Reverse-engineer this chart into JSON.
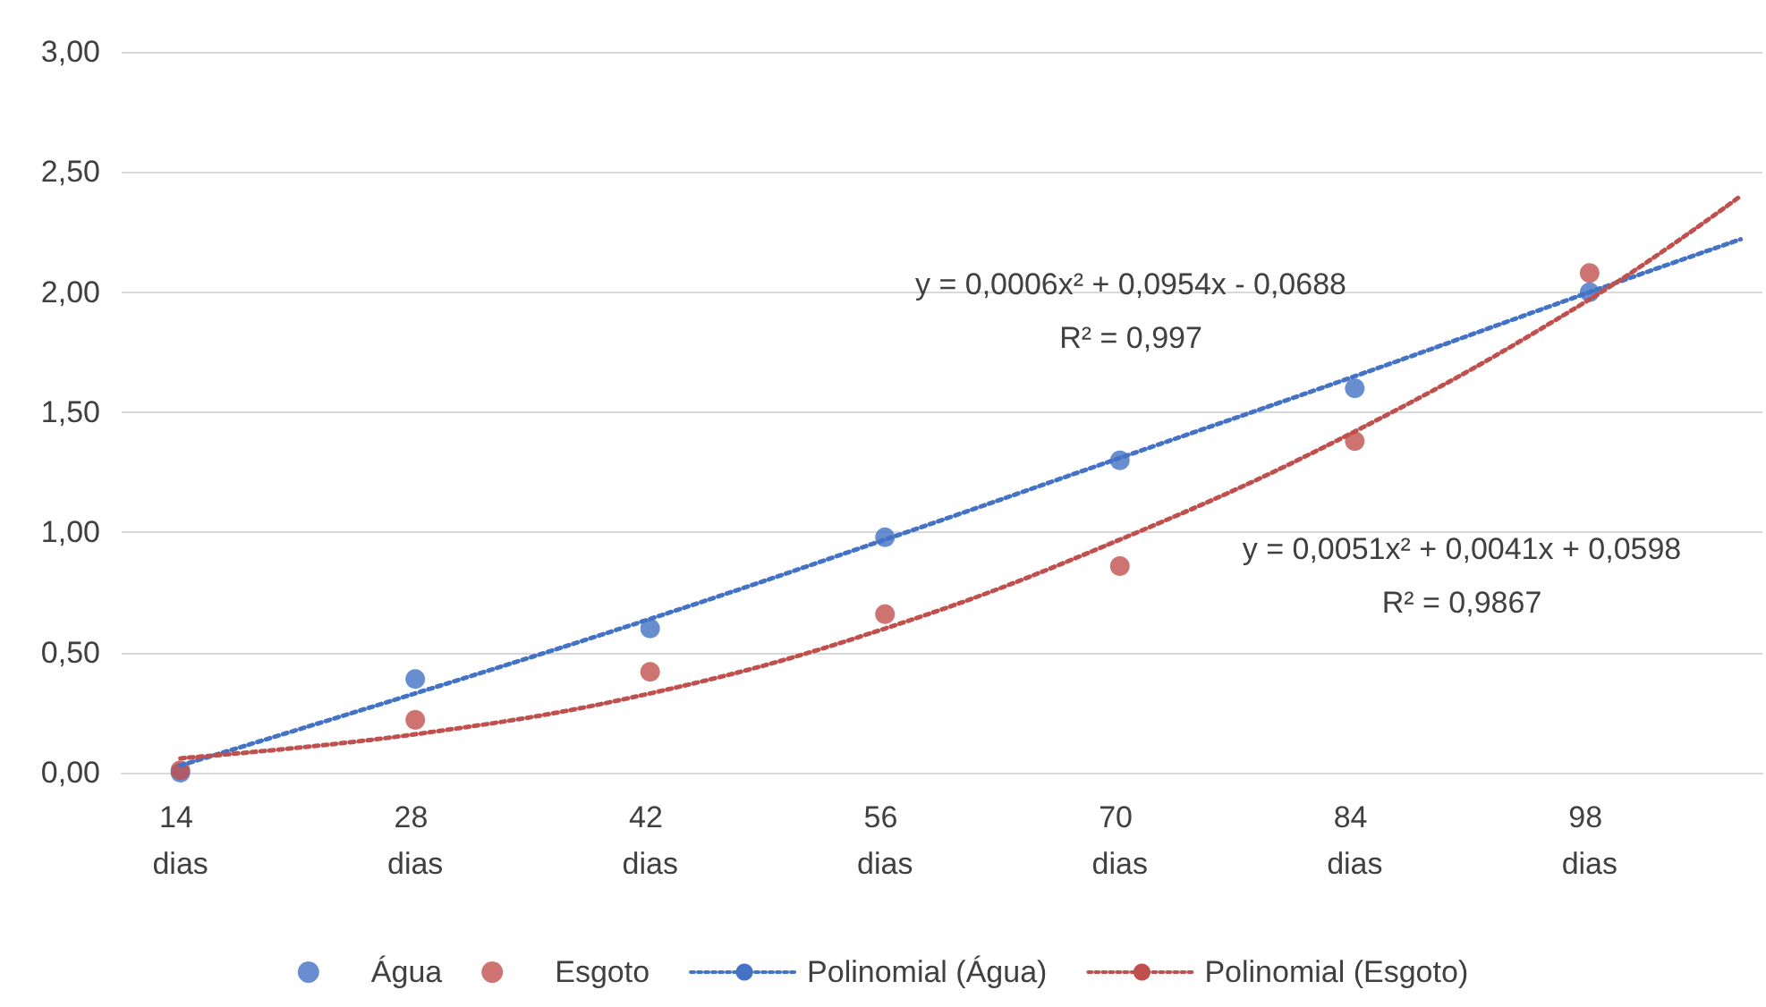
{
  "chart_data": {
    "type": "scatter",
    "x": [
      14,
      28,
      42,
      56,
      70,
      84,
      98
    ],
    "series": [
      {
        "name": "Água",
        "color": "#4472c4",
        "values": [
          0.0,
          0.39,
          0.6,
          0.98,
          1.3,
          1.6,
          2.0
        ]
      },
      {
        "name": "Esgoto",
        "color": "#c0504d",
        "values": [
          0.01,
          0.22,
          0.42,
          0.66,
          0.86,
          1.38,
          2.08
        ]
      },
      {
        "name": "Polinomial (Água)",
        "type": "line",
        "line_style": "dotted",
        "marker": "none",
        "color": "#4472c4",
        "x": [
          14,
          28,
          42,
          56,
          70,
          84,
          98,
          107
        ],
        "values": [
          0.03,
          0.33,
          0.64,
          0.97,
          1.31,
          1.65,
          2.0,
          2.22
        ]
      },
      {
        "name": "Polinomial (Esgoto)",
        "type": "line",
        "line_style": "dotted",
        "marker": "none",
        "color": "#c0504d",
        "x": [
          14,
          28,
          42,
          56,
          70,
          84,
          98,
          107
        ],
        "values": [
          0.06,
          0.16,
          0.33,
          0.6,
          0.97,
          1.42,
          1.97,
          2.4
        ]
      }
    ],
    "marker": "circle",
    "xlim": [
      10.5,
      108.3
    ],
    "xticks": [
      {
        "value": 14,
        "label": "14 dias"
      },
      {
        "value": 28,
        "label": "28 dias"
      },
      {
        "value": 42,
        "label": "42 dias"
      },
      {
        "value": 56,
        "label": "56 dias"
      },
      {
        "value": 70,
        "label": "70 dias"
      },
      {
        "value": 84,
        "label": "84 dias"
      },
      {
        "value": 98,
        "label": "98 dias"
      }
    ],
    "ylim": [
      0,
      3
    ],
    "yticks": [
      {
        "value": 0,
        "label": "0,00"
      },
      {
        "value": 0.5,
        "label": "0,50"
      },
      {
        "value": 1,
        "label": "1,00"
      },
      {
        "value": 1.5,
        "label": "1,50"
      },
      {
        "value": 2,
        "label": "2,00"
      },
      {
        "value": 2.5,
        "label": "2,50"
      },
      {
        "value": 3,
        "label": "3,00"
      }
    ],
    "grid": "y",
    "legend": "bottom",
    "annotations": [
      "y = 0,0006x² + 0,0954x - 0,0688\nR² = 0,997",
      "y = 0,0051x² + 0,0041x + 0,0598\nR² = 0,9867"
    ]
  }
}
